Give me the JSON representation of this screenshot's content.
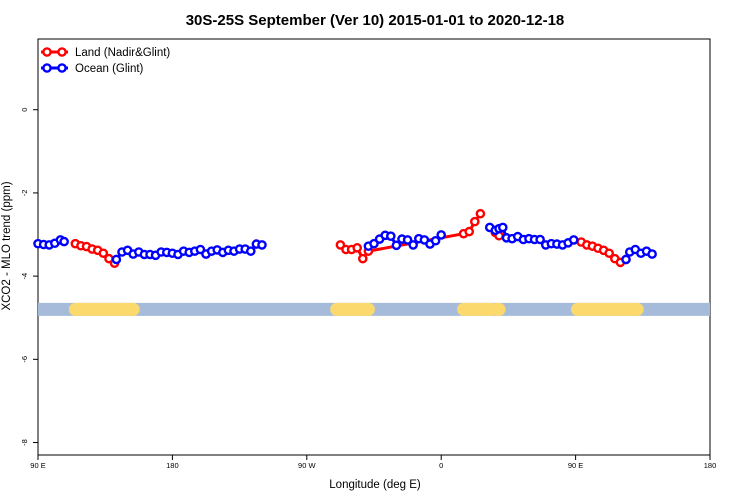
{
  "chart_data": {
    "type": "line",
    "title": "30S-25S September (Ver 10)   2015-01-01 to 2020-12-18",
    "xlabel": "Longitude (deg E)",
    "ylabel": "XCO2 - MLO trend (ppm)",
    "xlim": [
      90,
      450
    ],
    "ylim": [
      -8.3,
      1.7
    ],
    "x_ticks": [
      {
        "value": 90,
        "label": "90 E"
      },
      {
        "value": 162,
        "label": "180"
      },
      {
        "value": 234,
        "label": "90 W"
      },
      {
        "value": 306,
        "label": "0"
      },
      {
        "value": 378,
        "label": "90 E"
      },
      {
        "value": 450,
        "label": "180"
      }
    ],
    "y_ticks": [
      {
        "value": 0,
        "label": "0"
      },
      {
        "value": -2,
        "label": "-2"
      },
      {
        "value": -4,
        "label": "-4"
      },
      {
        "value": -6,
        "label": "-6"
      },
      {
        "value": -8,
        "label": "-8"
      }
    ],
    "grid": false,
    "legend_position": "top-left",
    "land_ocean_bar": {
      "y": -4.8,
      "ocean_color": "#a5bbd9",
      "land_color": "#fcd96c",
      "land_segments": [
        [
          110,
          141
        ],
        [
          250,
          267
        ],
        [
          318,
          333
        ],
        [
          336,
          337
        ],
        [
          379,
          411
        ]
      ]
    },
    "series": [
      {
        "name": "Land (Nadir&Glint)",
        "color": "#ff0000",
        "points": [
          [
            110,
            -3.22
          ],
          [
            113,
            -3.27
          ],
          [
            116,
            -3.29
          ],
          [
            119,
            -3.35
          ],
          [
            122,
            -3.38
          ],
          [
            125,
            -3.45
          ],
          [
            128,
            -3.58
          ],
          [
            131,
            -3.69
          ],
          [
            162,
            null
          ],
          [
            252,
            -3.25
          ],
          [
            255,
            -3.36
          ],
          [
            258,
            -3.36
          ],
          [
            261,
            -3.32
          ],
          [
            264,
            -3.58
          ],
          [
            267,
            -3.4
          ],
          [
            318,
            -2.98
          ],
          [
            321,
            -2.93
          ],
          [
            324,
            -2.69
          ],
          [
            327,
            -2.5
          ],
          [
            330,
            null
          ],
          [
            335,
            -2.95
          ],
          [
            337,
            -3.03
          ],
          [
            378,
            null
          ],
          [
            381,
            -3.18
          ],
          [
            384,
            -3.25
          ],
          [
            387,
            -3.28
          ],
          [
            390,
            -3.33
          ],
          [
            393,
            -3.38
          ],
          [
            396,
            -3.45
          ],
          [
            399,
            -3.58
          ],
          [
            402,
            -3.67
          ],
          [
            405,
            -3.6
          ]
        ]
      },
      {
        "name": "Ocean (Glint)",
        "color": "#0000ff",
        "points": [
          [
            90,
            -3.22
          ],
          [
            93,
            -3.24
          ],
          [
            96,
            -3.25
          ],
          [
            99,
            -3.21
          ],
          [
            102,
            -3.13
          ],
          [
            104,
            -3.17
          ],
          [
            131,
            null
          ],
          [
            132,
            -3.6
          ],
          [
            135,
            -3.42
          ],
          [
            138,
            -3.38
          ],
          [
            141,
            -3.47
          ],
          [
            144,
            -3.42
          ],
          [
            147,
            -3.48
          ],
          [
            150,
            -3.48
          ],
          [
            153,
            -3.5
          ],
          [
            156,
            -3.42
          ],
          [
            159,
            -3.43
          ],
          [
            162,
            -3.45
          ],
          [
            165,
            -3.48
          ],
          [
            168,
            -3.4
          ],
          [
            171,
            -3.43
          ],
          [
            174,
            -3.4
          ],
          [
            177,
            -3.36
          ],
          [
            180,
            -3.47
          ],
          [
            183,
            -3.4
          ],
          [
            186,
            -3.37
          ],
          [
            189,
            -3.43
          ],
          [
            192,
            -3.38
          ],
          [
            195,
            -3.4
          ],
          [
            198,
            -3.35
          ],
          [
            201,
            -3.35
          ],
          [
            204,
            -3.4
          ],
          [
            207,
            -3.23
          ],
          [
            210,
            -3.25
          ],
          [
            212,
            null
          ],
          [
            267,
            -3.28
          ],
          [
            270,
            -3.22
          ],
          [
            273,
            -3.11
          ],
          [
            276,
            -3.02
          ],
          [
            279,
            -3.04
          ],
          [
            282,
            -3.26
          ],
          [
            285,
            -3.11
          ],
          [
            288,
            -3.13
          ],
          [
            291,
            -3.25
          ],
          [
            294,
            -3.1
          ],
          [
            297,
            -3.13
          ],
          [
            300,
            -3.23
          ],
          [
            303,
            -3.15
          ],
          [
            306,
            -3.01
          ],
          [
            309,
            null
          ],
          [
            332,
            -2.83
          ],
          [
            335,
            -2.9
          ],
          [
            337,
            -2.86
          ],
          [
            339,
            -2.83
          ],
          [
            341,
            -3.08
          ],
          [
            344,
            -3.1
          ],
          [
            347,
            -3.05
          ],
          [
            350,
            -3.12
          ],
          [
            353,
            -3.1
          ],
          [
            356,
            -3.12
          ],
          [
            359,
            -3.12
          ],
          [
            362,
            -3.25
          ],
          [
            365,
            -3.22
          ],
          [
            368,
            -3.23
          ],
          [
            371,
            -3.25
          ],
          [
            374,
            -3.2
          ],
          [
            377,
            -3.13
          ],
          [
            379,
            null
          ],
          [
            405,
            -3.6
          ],
          [
            407,
            -3.42
          ],
          [
            410,
            -3.36
          ],
          [
            413,
            -3.45
          ],
          [
            416,
            -3.4
          ],
          [
            419,
            -3.47
          ]
        ]
      }
    ]
  }
}
